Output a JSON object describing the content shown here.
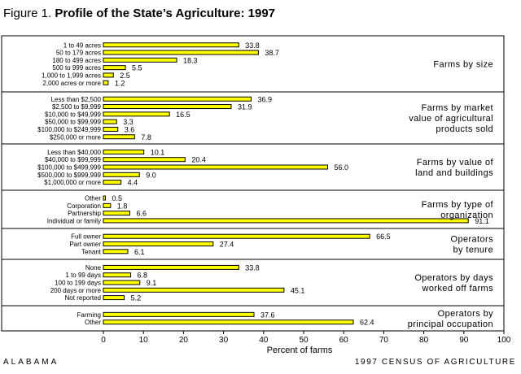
{
  "figure": {
    "number": "Figure 1.",
    "title": "Profile of the State’s Agriculture: 1997"
  },
  "footer": {
    "left": "ALABAMA",
    "right": "1997 CENSUS OF AGRICULTURE"
  },
  "colors": {
    "bar_fill": "#ffff00",
    "bar_stroke": "#000000",
    "background": "#ffffff"
  },
  "chart_data": {
    "type": "bar",
    "orientation": "horizontal",
    "xlabel": "Percent of farms",
    "xlim": [
      0,
      100
    ],
    "xticks": [
      0,
      10,
      20,
      30,
      40,
      50,
      60,
      70,
      80,
      90,
      100
    ],
    "grid": false,
    "panels": [
      {
        "title_lines": [
          "Farms by size"
        ],
        "categories": [
          "1 to 49 acres",
          "50 to 179 acres",
          "180 to 499 acres",
          "500 to 999 acres",
          "1,000 to 1,999 acres",
          "2,000 acres or more"
        ],
        "values": [
          33.8,
          38.7,
          18.3,
          5.5,
          2.5,
          1.2
        ],
        "labels": [
          "33.8",
          "38.7",
          "18.3",
          "5.5",
          "2.5",
          "1.2"
        ]
      },
      {
        "title_lines": [
          "Farms by market",
          "value of agricultural",
          "products sold"
        ],
        "categories": [
          "Less than $2,500",
          "$2,500 to $9,999",
          "$10,000 to $49,999",
          "$50,000 to $99,999",
          "$100,000 to $249,999",
          "$250,000 or more"
        ],
        "values": [
          36.9,
          31.9,
          16.5,
          3.3,
          3.6,
          7.8
        ],
        "labels": [
          "36.9",
          "31.9",
          "16.5",
          "3.3",
          "3.6",
          "7.8"
        ]
      },
      {
        "title_lines": [
          "Farms by value of",
          "land and buildings"
        ],
        "categories": [
          "Less than $40,000",
          "$40,000 to $99,999",
          "$100,000 to $499,999",
          "$500,000 to $999,999",
          "$1,000,000 or more"
        ],
        "values": [
          10.1,
          20.4,
          56.0,
          9.0,
          4.4
        ],
        "labels": [
          "10.1",
          "20.4",
          "56.0",
          "9.0",
          "4.4"
        ]
      },
      {
        "title_lines": [
          "Farms by type of",
          "organization"
        ],
        "categories": [
          "Other",
          "Corporation",
          "Partnership",
          "Individual or family"
        ],
        "values": [
          0.5,
          1.8,
          6.6,
          91.1
        ],
        "labels": [
          "0.5",
          "1.8",
          "6.6",
          "91.1"
        ]
      },
      {
        "title_lines": [
          "Operators",
          "by tenure"
        ],
        "categories": [
          "Full owner",
          "Part owner",
          "Tenant"
        ],
        "values": [
          66.5,
          27.4,
          6.1
        ],
        "labels": [
          "66.5",
          "27.4",
          "6.1"
        ]
      },
      {
        "title_lines": [
          "Operators by days",
          "worked off farms"
        ],
        "categories": [
          "None",
          "1 to 99 days",
          "100 to 199 days",
          "200 days or more",
          "Not reported"
        ],
        "values": [
          33.8,
          6.8,
          9.1,
          45.1,
          5.2
        ],
        "labels": [
          "33.8",
          "6.8",
          "9.1",
          "45.1",
          "5.2"
        ]
      },
      {
        "title_lines": [
          "Operators by",
          "principal occupation"
        ],
        "categories": [
          "Farming",
          "Other"
        ],
        "values": [
          37.6,
          62.4
        ],
        "labels": [
          "37.6",
          "62.4"
        ]
      }
    ]
  }
}
